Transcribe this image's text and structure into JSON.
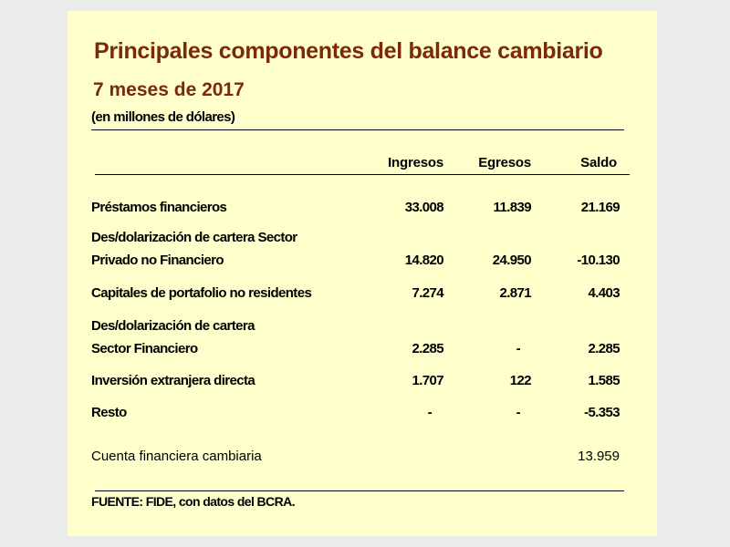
{
  "title": "Principales componentes del balance cambiario",
  "subtitle": "7 meses de 2017",
  "units": "(en millones de dólares)",
  "headers": {
    "ingresos": "Ingresos",
    "egresos": "Egresos",
    "saldo": "Saldo"
  },
  "rows": [
    {
      "label": "Préstamos financieros",
      "ingresos": "33.008",
      "egresos": "11.839",
      "saldo": "21.169"
    },
    {
      "label_line1": "Des/dolarización de cartera Sector",
      "label": "Privado no Financiero",
      "ingresos": "14.820",
      "egresos": "24.950",
      "saldo": "-10.130"
    },
    {
      "label": "Capitales de portafolio no residentes",
      "ingresos": "7.274",
      "egresos": "2.871",
      "saldo": "4.403"
    },
    {
      "label_line1": "Des/dolarización de cartera",
      "label": "Sector Financiero",
      "ingresos": "2.285",
      "egresos": "-",
      "saldo": "2.285"
    },
    {
      "label": "Inversión extranjera directa",
      "ingresos": "1.707",
      "egresos": "122",
      "saldo": "1.585"
    },
    {
      "label": "Resto",
      "ingresos": "-",
      "egresos": "-",
      "saldo": "-5.353"
    }
  ],
  "total": {
    "label": "Cuenta financiera cambiaria",
    "saldo": "13.959"
  },
  "source": "FUENTE: FIDE, con datos del BCRA."
}
